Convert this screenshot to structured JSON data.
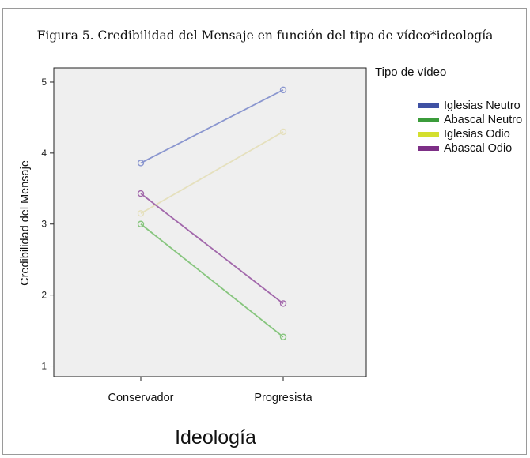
{
  "title": "Figura 5. Credibilidad del Mensaje en función del tipo de vídeo*ideología",
  "chart_data": {
    "type": "line",
    "categories": [
      "Conservador",
      "Progresista"
    ],
    "xlabel": "Ideología",
    "ylabel": "Credibilidad del Mensaje",
    "ylim": [
      0.85,
      5.2
    ],
    "yticks": [
      1,
      2,
      3,
      4,
      5
    ],
    "grid": false,
    "legend_title": "Tipo de vídeo",
    "legend_position": "right",
    "series": [
      {
        "name": "Iglesias Neutro",
        "values": [
          3.86,
          4.89
        ],
        "color": "#3f51a3"
      },
      {
        "name": "Abascal Neutro",
        "values": [
          3.0,
          1.41
        ],
        "color": "#3b9c3b"
      },
      {
        "name": "Iglesias Odio",
        "values": [
          3.15,
          4.3
        ],
        "color": "#d4df2e"
      },
      {
        "name": "Abascal Odio",
        "values": [
          3.43,
          1.88
        ],
        "color": "#7d2f86"
      }
    ],
    "line_colors": [
      "#8a96cf",
      "#86c57d",
      "#e5e0bd",
      "#a268ab"
    ],
    "plot_background": "#efefef"
  }
}
